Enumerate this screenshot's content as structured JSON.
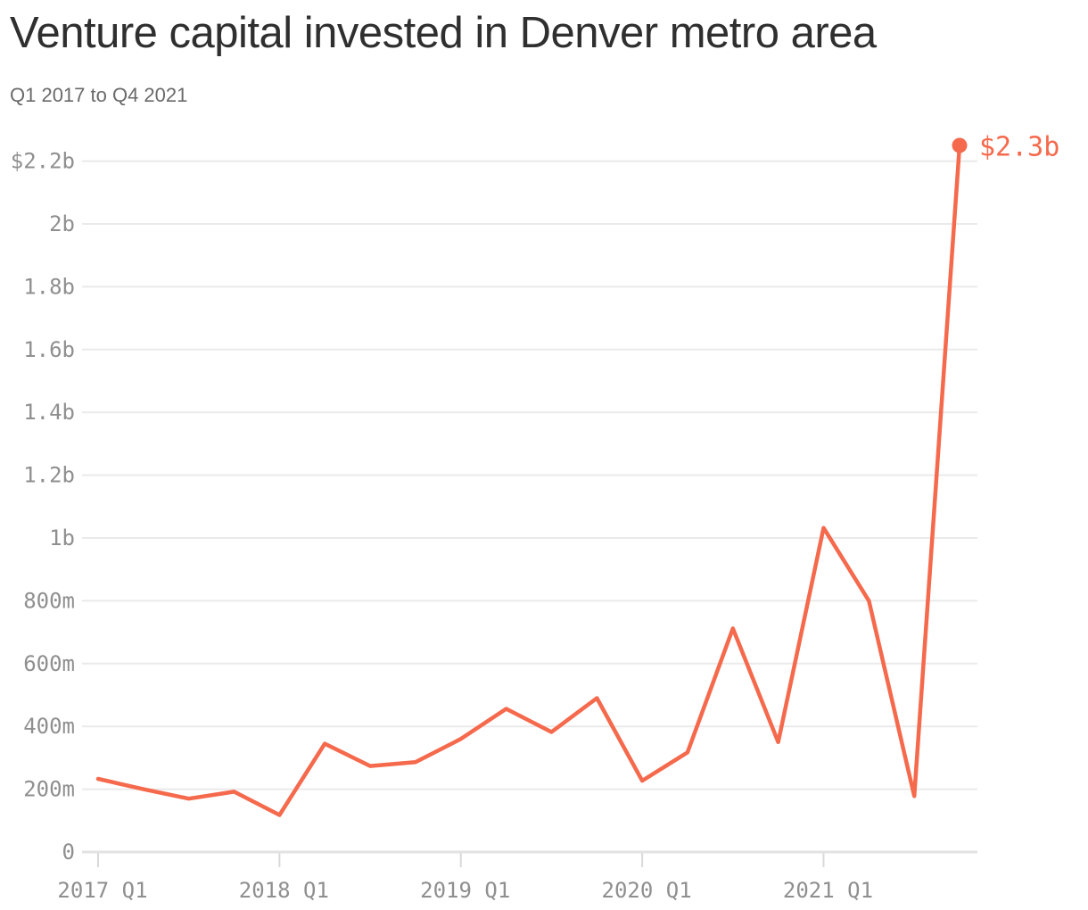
{
  "header": {
    "title": "Venture capital invested in Denver metro area",
    "subtitle": "Q1 2017 to Q4 2021"
  },
  "chart_data": {
    "type": "line",
    "title": "Venture capital invested in Denver metro area",
    "subtitle": "Q1 2017 to Q4 2021",
    "unit": "USD (m = millions, b = billions)",
    "x": [
      "2017 Q1",
      "2017 Q2",
      "2017 Q3",
      "2017 Q4",
      "2018 Q1",
      "2018 Q2",
      "2018 Q3",
      "2018 Q4",
      "2019 Q1",
      "2019 Q2",
      "2019 Q3",
      "2019 Q4",
      "2020 Q1",
      "2020 Q2",
      "2020 Q3",
      "2020 Q4",
      "2021 Q1",
      "2021 Q2",
      "2021 Q3",
      "2021 Q4"
    ],
    "values_millions": [
      233,
      200,
      170,
      192,
      118,
      345,
      274,
      286,
      360,
      456,
      382,
      490,
      227,
      317,
      712,
      350,
      1032,
      800,
      178,
      2250
    ],
    "x_tick_indices": [
      0,
      4,
      8,
      12,
      16
    ],
    "x_tick_labels": [
      "2017 Q1",
      "2018 Q1",
      "2019 Q1",
      "2020 Q1",
      "2021 Q1"
    ],
    "y_ticks": [
      {
        "value": 2200,
        "label": "$2.2b"
      },
      {
        "value": 2000,
        "label": "2b"
      },
      {
        "value": 1800,
        "label": "1.8b"
      },
      {
        "value": 1600,
        "label": "1.6b"
      },
      {
        "value": 1400,
        "label": "1.4b"
      },
      {
        "value": 1200,
        "label": "1.2b"
      },
      {
        "value": 1000,
        "label": "1b"
      },
      {
        "value": 800,
        "label": "800m"
      },
      {
        "value": 600,
        "label": "600m"
      },
      {
        "value": 400,
        "label": "400m"
      },
      {
        "value": 200,
        "label": "200m"
      },
      {
        "value": 0,
        "label": "0"
      }
    ],
    "ylim_millions": [
      0,
      2320
    ],
    "grid": "horizontal-only",
    "legend": "none",
    "annotation": {
      "label": "$2.3b",
      "point_index": 19
    },
    "colors": {
      "line": "#f5694c",
      "endpoint_marker": "#f5694c",
      "annotation_text": "#f5694c",
      "axis_label": "#8f8f8f",
      "gridline": "#eaeaea",
      "zero_line": "#e2e2e2",
      "tick": "#d9d9d9",
      "title": "#2f2f2f",
      "subtitle": "#6a6a6a"
    }
  }
}
